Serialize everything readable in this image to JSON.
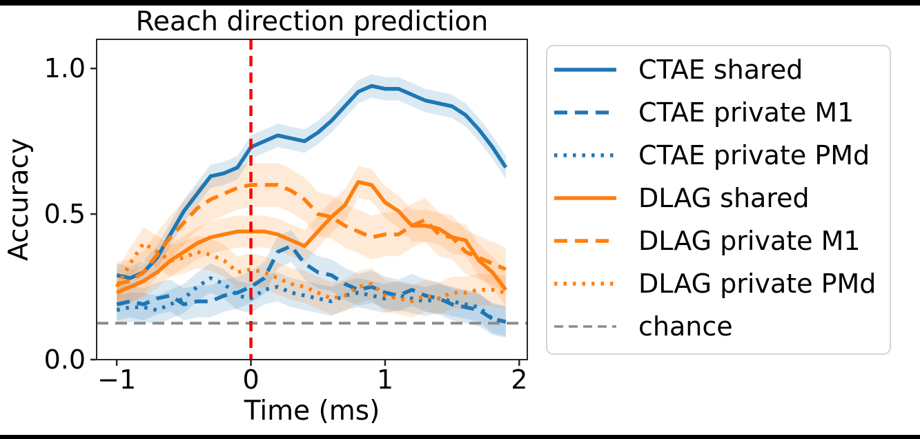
{
  "figure": {
    "top_bar_color": "#000000",
    "bottom_bar_color": "#000000",
    "background": "#ffffff"
  },
  "chart_data": {
    "type": "line",
    "title": "Reach direction prediction",
    "xlabel": "Time (ms)",
    "ylabel": "Accuracy",
    "xlim": [
      -1.15,
      2.06
    ],
    "ylim": [
      0,
      1.1
    ],
    "grid": false,
    "x_ticks": [
      {
        "v": -1,
        "label": "−1"
      },
      {
        "v": 0,
        "label": "0"
      },
      {
        "v": 1,
        "label": "1"
      },
      {
        "v": 2,
        "label": "2"
      }
    ],
    "y_ticks": [
      {
        "v": 0.0,
        "label": "0.0"
      },
      {
        "v": 0.5,
        "label": "0.5"
      },
      {
        "v": 1.0,
        "label": "1.0"
      }
    ],
    "x": [
      -1.0,
      -0.9,
      -0.8,
      -0.7,
      -0.6,
      -0.5,
      -0.4,
      -0.3,
      -0.2,
      -0.1,
      0.0,
      0.1,
      0.2,
      0.3,
      0.4,
      0.5,
      0.6,
      0.7,
      0.8,
      0.9,
      1.0,
      1.1,
      1.2,
      1.3,
      1.4,
      1.5,
      1.6,
      1.7,
      1.8,
      1.9
    ],
    "series": [
      {
        "name": "CTAE shared",
        "color": "#1f77b4",
        "style": "solid",
        "band": 0.04,
        "values": [
          0.29,
          0.28,
          0.3,
          0.35,
          0.43,
          0.51,
          0.57,
          0.63,
          0.64,
          0.66,
          0.73,
          0.75,
          0.77,
          0.76,
          0.75,
          0.78,
          0.82,
          0.87,
          0.92,
          0.94,
          0.93,
          0.93,
          0.91,
          0.89,
          0.88,
          0.87,
          0.84,
          0.79,
          0.73,
          0.66
        ]
      },
      {
        "name": "CTAE private M1",
        "color": "#1f77b4",
        "style": "dashed",
        "band": 0.055,
        "values": [
          0.19,
          0.2,
          0.19,
          0.21,
          0.22,
          0.19,
          0.2,
          0.2,
          0.22,
          0.23,
          0.25,
          0.28,
          0.37,
          0.39,
          0.33,
          0.3,
          0.29,
          0.26,
          0.24,
          0.25,
          0.23,
          0.22,
          0.24,
          0.22,
          0.21,
          0.19,
          0.18,
          0.17,
          0.14,
          0.13
        ]
      },
      {
        "name": "CTAE private PMd",
        "color": "#1f77b4",
        "style": "dotted",
        "band": 0.05,
        "values": [
          0.17,
          0.18,
          0.18,
          0.17,
          0.19,
          0.21,
          0.25,
          0.28,
          0.26,
          0.22,
          0.21,
          0.24,
          0.25,
          0.23,
          0.22,
          0.21,
          0.2,
          0.22,
          0.23,
          0.22,
          0.21,
          0.22,
          0.21,
          0.2,
          0.21,
          0.2,
          0.19,
          0.18,
          0.14,
          0.13
        ]
      },
      {
        "name": "DLAG shared",
        "color": "#ff7f0e",
        "style": "solid",
        "band": 0.055,
        "values": [
          0.23,
          0.25,
          0.27,
          0.3,
          0.34,
          0.37,
          0.4,
          0.42,
          0.43,
          0.44,
          0.44,
          0.44,
          0.43,
          0.41,
          0.39,
          0.44,
          0.49,
          0.53,
          0.61,
          0.6,
          0.54,
          0.51,
          0.46,
          0.46,
          0.45,
          0.42,
          0.41,
          0.34,
          0.3,
          0.24
        ]
      },
      {
        "name": "DLAG private M1",
        "color": "#ff7f0e",
        "style": "dashed",
        "band": 0.075,
        "values": [
          0.26,
          0.27,
          0.3,
          0.36,
          0.42,
          0.47,
          0.52,
          0.55,
          0.57,
          0.59,
          0.6,
          0.6,
          0.6,
          0.58,
          0.55,
          0.5,
          0.49,
          0.46,
          0.44,
          0.42,
          0.43,
          0.43,
          0.46,
          0.48,
          0.43,
          0.42,
          0.37,
          0.35,
          0.33,
          0.31
        ]
      },
      {
        "name": "DLAG private PMd",
        "color": "#ff7f0e",
        "style": "dotted",
        "band": 0.055,
        "values": [
          0.25,
          0.33,
          0.4,
          0.37,
          0.34,
          0.35,
          0.37,
          0.36,
          0.34,
          0.3,
          0.31,
          0.3,
          0.28,
          0.26,
          0.25,
          0.23,
          0.21,
          0.22,
          0.25,
          0.26,
          0.22,
          0.21,
          0.2,
          0.22,
          0.21,
          0.23,
          0.23,
          0.24,
          0.24,
          0.23
        ]
      }
    ],
    "annotations": {
      "event_vline": {
        "x": 0,
        "color": "#ff0000",
        "style": "dashed"
      },
      "chance_hline": {
        "y": 0.125,
        "color": "#8c8c8c",
        "style": "dashed",
        "label": "chance"
      }
    },
    "legend": {
      "position": "right",
      "items": [
        {
          "label": "CTAE shared",
          "color": "#1f77b4",
          "style": "solid"
        },
        {
          "label": "CTAE private M1",
          "color": "#1f77b4",
          "style": "dashed"
        },
        {
          "label": "CTAE private PMd",
          "color": "#1f77b4",
          "style": "dotted"
        },
        {
          "label": "DLAG shared",
          "color": "#ff7f0e",
          "style": "solid"
        },
        {
          "label": "DLAG private M1",
          "color": "#ff7f0e",
          "style": "dashed"
        },
        {
          "label": "DLAG private PMd",
          "color": "#ff7f0e",
          "style": "dotted"
        },
        {
          "label": "chance",
          "color": "#8c8c8c",
          "style": "dashed_thin"
        }
      ]
    }
  }
}
